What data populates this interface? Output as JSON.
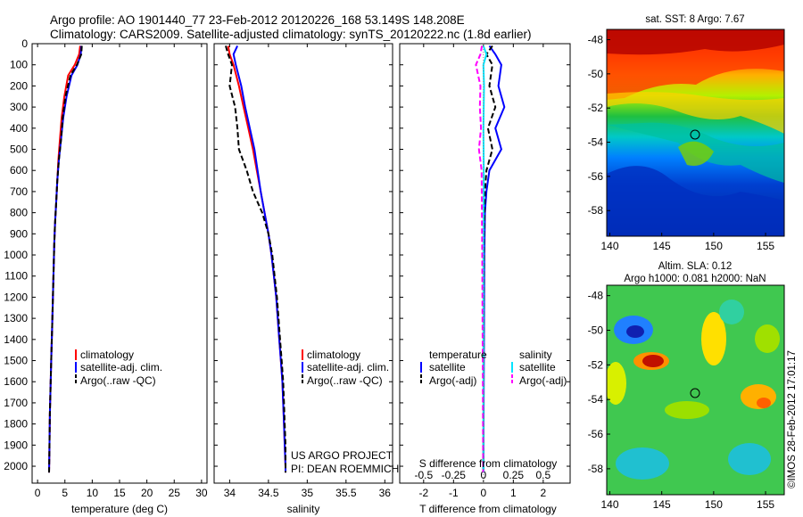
{
  "header": {
    "line1": "Argo profile: AO 1901440_77 23-Feb-2012 20120226_168 53.149S 148.208E",
    "line2": "Climatology: CARS2009. Satellite-adjusted climatology: synTS_20120222.nc (1.8d earlier)"
  },
  "colors": {
    "clim": "#ff0000",
    "sat": "#0000ff",
    "argo": "#000000",
    "sal_sat": "#00e5ff",
    "sal_argo": "#ff00ff"
  },
  "chart_data": [
    {
      "type": "line",
      "panel": "temperature",
      "xlabel": "temperature (deg C)",
      "ylabel": "",
      "xlim": [
        -1,
        31
      ],
      "ylim": [
        2080,
        0
      ],
      "xticks": [
        0,
        5,
        10,
        15,
        20,
        25,
        30
      ],
      "yticks": [
        0,
        100,
        200,
        300,
        400,
        500,
        600,
        700,
        800,
        900,
        1000,
        1100,
        1200,
        1300,
        1400,
        1500,
        1600,
        1700,
        1800,
        1900,
        2000
      ],
      "legend": [
        "climatology",
        "satellite-adj. clim.",
        "Argo(..raw -QC)"
      ],
      "series": [
        {
          "name": "climatology",
          "color": "clim",
          "points": [
            [
              7.8,
              10
            ],
            [
              7.6,
              50
            ],
            [
              6.8,
              100
            ],
            [
              5.6,
              150
            ],
            [
              4.9,
              250
            ],
            [
              4.4,
              350
            ],
            [
              4.1,
              450
            ],
            [
              3.8,
              550
            ],
            [
              3.6,
              650
            ],
            [
              3.4,
              750
            ],
            [
              3.2,
              850
            ],
            [
              3.05,
              950
            ],
            [
              2.95,
              1050
            ],
            [
              2.85,
              1150
            ],
            [
              2.75,
              1250
            ],
            [
              2.65,
              1350
            ],
            [
              2.55,
              1450
            ],
            [
              2.45,
              1550
            ],
            [
              2.35,
              1650
            ],
            [
              2.25,
              1750
            ],
            [
              2.2,
              1850
            ],
            [
              2.15,
              1950
            ],
            [
              2.1,
              2030
            ]
          ]
        },
        {
          "name": "satellite-adj. clim.",
          "color": "sat",
          "points": [
            [
              8.0,
              10
            ],
            [
              7.9,
              50
            ],
            [
              7.3,
              100
            ],
            [
              6.2,
              150
            ],
            [
              5.3,
              250
            ],
            [
              4.7,
              350
            ],
            [
              4.3,
              450
            ],
            [
              3.9,
              550
            ],
            [
              3.6,
              650
            ],
            [
              3.4,
              750
            ],
            [
              3.2,
              850
            ],
            [
              3.05,
              950
            ],
            [
              2.95,
              1050
            ],
            [
              2.85,
              1150
            ],
            [
              2.75,
              1250
            ],
            [
              2.65,
              1350
            ],
            [
              2.55,
              1450
            ],
            [
              2.45,
              1550
            ],
            [
              2.35,
              1650
            ],
            [
              2.25,
              1750
            ],
            [
              2.2,
              1850
            ],
            [
              2.15,
              1950
            ],
            [
              2.1,
              2030
            ]
          ]
        },
        {
          "name": "Argo(..raw -QC)",
          "color": "argo",
          "points": [
            [
              8.1,
              10
            ],
            [
              8.0,
              50
            ],
            [
              7.2,
              100
            ],
            [
              6.0,
              150
            ],
            [
              5.1,
              250
            ],
            [
              4.6,
              350
            ],
            [
              4.3,
              450
            ],
            [
              3.9,
              550
            ],
            [
              3.6,
              650
            ],
            [
              3.4,
              750
            ],
            [
              3.2,
              850
            ],
            [
              3.05,
              950
            ],
            [
              2.95,
              1050
            ],
            [
              2.85,
              1150
            ],
            [
              2.75,
              1250
            ],
            [
              2.65,
              1350
            ],
            [
              2.55,
              1450
            ],
            [
              2.45,
              1550
            ],
            [
              2.35,
              1650
            ],
            [
              2.25,
              1750
            ],
            [
              2.2,
              1850
            ],
            [
              2.15,
              1950
            ],
            [
              2.1,
              2030
            ]
          ]
        }
      ]
    },
    {
      "type": "line",
      "panel": "salinity",
      "xlabel": "salinity",
      "xlim": [
        33.8,
        36.1
      ],
      "ylim": [
        2080,
        0
      ],
      "xticks": [
        34,
        34.5,
        35,
        35.5,
        36
      ],
      "legend": [
        "climatology",
        "satellite-adj. clim.",
        "Argo(..raw -QC)"
      ],
      "series": [
        {
          "name": "climatology",
          "color": "clim",
          "points": [
            [
              33.98,
              10
            ],
            [
              34.0,
              50
            ],
            [
              34.05,
              100
            ],
            [
              34.12,
              200
            ],
            [
              34.18,
              300
            ],
            [
              34.24,
              400
            ],
            [
              34.3,
              500
            ],
            [
              34.35,
              600
            ],
            [
              34.4,
              700
            ],
            [
              34.45,
              800
            ],
            [
              34.5,
              900
            ],
            [
              34.54,
              1000
            ],
            [
              34.57,
              1100
            ],
            [
              34.6,
              1200
            ],
            [
              34.62,
              1300
            ],
            [
              34.64,
              1400
            ],
            [
              34.66,
              1500
            ],
            [
              34.68,
              1600
            ],
            [
              34.69,
              1700
            ],
            [
              34.7,
              1800
            ],
            [
              34.71,
              1900
            ],
            [
              34.72,
              2000
            ],
            [
              34.72,
              2030
            ]
          ]
        },
        {
          "name": "satellite-adj. clim.",
          "color": "sat",
          "points": [
            [
              34.1,
              10
            ],
            [
              34.05,
              50
            ],
            [
              34.08,
              100
            ],
            [
              34.15,
              200
            ],
            [
              34.2,
              300
            ],
            [
              34.26,
              400
            ],
            [
              34.32,
              500
            ],
            [
              34.36,
              600
            ],
            [
              34.4,
              700
            ],
            [
              34.45,
              800
            ],
            [
              34.5,
              900
            ],
            [
              34.54,
              1000
            ],
            [
              34.57,
              1100
            ],
            [
              34.6,
              1200
            ],
            [
              34.62,
              1300
            ],
            [
              34.64,
              1400
            ],
            [
              34.66,
              1500
            ],
            [
              34.68,
              1600
            ],
            [
              34.69,
              1700
            ],
            [
              34.7,
              1800
            ],
            [
              34.71,
              1900
            ],
            [
              34.72,
              2000
            ],
            [
              34.72,
              2030
            ]
          ]
        },
        {
          "name": "Argo(..raw -QC)",
          "color": "argo",
          "points": [
            [
              33.95,
              10
            ],
            [
              33.98,
              50
            ],
            [
              34.03,
              100
            ],
            [
              34.0,
              200
            ],
            [
              34.07,
              300
            ],
            [
              34.1,
              400
            ],
            [
              34.12,
              500
            ],
            [
              34.22,
              600
            ],
            [
              34.3,
              700
            ],
            [
              34.42,
              800
            ],
            [
              34.5,
              900
            ],
            [
              34.55,
              1000
            ],
            [
              34.58,
              1100
            ],
            [
              34.61,
              1200
            ],
            [
              34.63,
              1300
            ],
            [
              34.65,
              1400
            ],
            [
              34.67,
              1500
            ],
            [
              34.69,
              1600
            ],
            [
              34.7,
              1700
            ],
            [
              34.71,
              1800
            ],
            [
              34.72,
              1900
            ],
            [
              34.72,
              2000
            ],
            [
              34.72,
              2030
            ]
          ]
        }
      ]
    },
    {
      "type": "line",
      "panel": "differences",
      "xlabel": "T difference from climatology",
      "xlabel2": "S difference from climatology",
      "xlim": [
        -2.8,
        2.9
      ],
      "ylim": [
        2080,
        0
      ],
      "xticks": [
        -2,
        -1,
        0,
        1,
        2
      ],
      "xticks2": [
        "-0.5",
        "-0.25",
        "0",
        "0.25",
        "0.5"
      ],
      "legend": [
        {
          "group": "temperature",
          "items": [
            "satellite",
            "Argo(-adj)"
          ]
        },
        {
          "group": "salinity",
          "items": [
            "satellite",
            "Argo(-adj)"
          ]
        }
      ],
      "series": [
        {
          "name": "temperature satellite",
          "color": "sat",
          "points": [
            [
              0.2,
              10
            ],
            [
              0.4,
              50
            ],
            [
              0.6,
              100
            ],
            [
              0.5,
              200
            ],
            [
              0.7,
              300
            ],
            [
              0.4,
              400
            ],
            [
              0.6,
              500
            ],
            [
              0.2,
              600
            ],
            [
              0.1,
              700
            ],
            [
              0.05,
              800
            ],
            [
              0.03,
              1000
            ],
            [
              0.02,
              1300
            ],
            [
              0.01,
              1600
            ],
            [
              0.0,
              2030
            ]
          ]
        },
        {
          "name": "temperature Argo(-adj)",
          "color": "argo",
          "points": [
            [
              0.3,
              10
            ],
            [
              0.1,
              50
            ],
            [
              0.3,
              100
            ],
            [
              0.2,
              200
            ],
            [
              0.4,
              300
            ],
            [
              0.15,
              400
            ],
            [
              0.3,
              500
            ],
            [
              0.1,
              600
            ],
            [
              0.05,
              700
            ],
            [
              0.02,
              900
            ],
            [
              0.01,
              1200
            ],
            [
              0.0,
              2030
            ]
          ]
        },
        {
          "name": "salinity satellite",
          "color": "sal_sat",
          "points": [
            [
              0.0,
              10
            ],
            [
              0.1,
              50
            ],
            [
              0.0,
              100
            ],
            [
              0.02,
              200
            ],
            [
              0.0,
              400
            ],
            [
              0.01,
              600
            ],
            [
              0.0,
              1000
            ],
            [
              0.0,
              2030
            ]
          ]
        },
        {
          "name": "salinity Argo(-adj)",
          "color": "sal_argo",
          "points": [
            [
              -0.05,
              10
            ],
            [
              -0.1,
              50
            ],
            [
              -0.25,
              100
            ],
            [
              -0.1,
              200
            ],
            [
              -0.12,
              300
            ],
            [
              -0.08,
              400
            ],
            [
              -0.15,
              500
            ],
            [
              -0.06,
              600
            ],
            [
              -0.05,
              800
            ],
            [
              -0.04,
              1000
            ],
            [
              -0.03,
              1300
            ],
            [
              -0.02,
              1600
            ],
            [
              -0.01,
              2030
            ]
          ]
        }
      ]
    },
    {
      "type": "heatmap",
      "panel": "sst_map",
      "title": "sat. SST: 8 Argo: 7.67",
      "xticks": [
        140,
        145,
        150,
        155
      ],
      "yticks": [
        -48,
        -50,
        -52,
        -54,
        -56,
        -58
      ],
      "marker": {
        "lon": 148.208,
        "lat": -53.149
      }
    },
    {
      "type": "heatmap",
      "panel": "sla_map",
      "title_line1": "Altim. SLA: 0.12",
      "title_line2": "Argo h1000: 0.081 h2000: NaN",
      "xticks": [
        140,
        145,
        150,
        155
      ],
      "yticks": [
        -48,
        -50,
        -52,
        -54,
        -56,
        -58
      ],
      "marker": {
        "lon": 148.208,
        "lat": -53.149
      }
    }
  ],
  "annotations": {
    "project_line1": "US ARGO PROJECT",
    "project_line2": "PI: DEAN ROEMMICH",
    "watermark": "©IMOS 28-Feb-2012 17:01:17"
  }
}
